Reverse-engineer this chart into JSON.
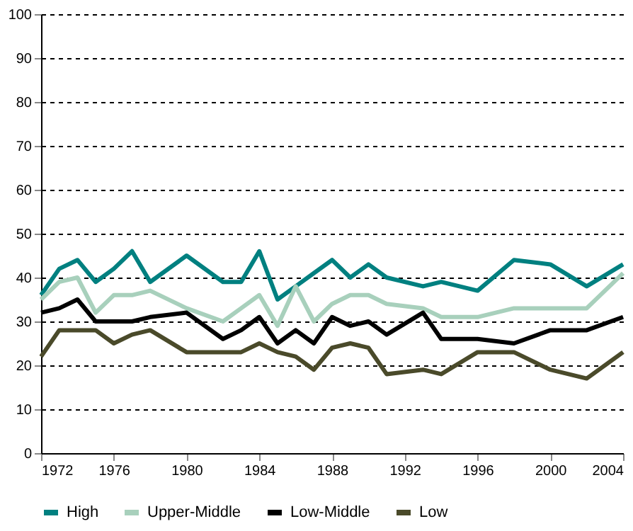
{
  "chart_data": {
    "type": "line",
    "x": [
      1972,
      1973,
      1974,
      1975,
      1976,
      1977,
      1978,
      1980,
      1982,
      1983,
      1984,
      1985,
      1986,
      1987,
      1988,
      1989,
      1990,
      1991,
      1993,
      1994,
      1996,
      1998,
      2000,
      2002,
      2004
    ],
    "series": [
      {
        "name": "High",
        "color": "#008080",
        "values": [
          36,
          42,
          44,
          39,
          42,
          46,
          39,
          45,
          39,
          39,
          46,
          35,
          38,
          41,
          44,
          40,
          43,
          40,
          38,
          39,
          37,
          44,
          43,
          38,
          43
        ]
      },
      {
        "name": "Upper-Middle",
        "color": "#a8d0bc",
        "values": [
          35,
          39,
          40,
          32,
          36,
          36,
          37,
          33,
          30,
          33,
          36,
          29,
          38,
          30,
          34,
          36,
          36,
          34,
          33,
          31,
          31,
          33,
          33,
          33,
          41
        ]
      },
      {
        "name": "Low-Middle",
        "color": "#000000",
        "values": [
          32,
          33,
          35,
          30,
          30,
          30,
          31,
          32,
          26,
          28,
          31,
          25,
          28,
          25,
          31,
          29,
          30,
          27,
          32,
          26,
          26,
          25,
          28,
          28,
          31
        ]
      },
      {
        "name": "Low",
        "color": "#4a4a2a",
        "values": [
          22,
          28,
          28,
          28,
          25,
          27,
          28,
          23,
          23,
          23,
          25,
          23,
          22,
          19,
          24,
          25,
          24,
          18,
          19,
          18,
          23,
          23,
          19,
          17,
          23
        ]
      }
    ],
    "xlim": [
      1972,
      2004
    ],
    "xticks": [
      1972,
      1976,
      1980,
      1984,
      1988,
      1992,
      1996,
      2000,
      2004
    ],
    "ylim": [
      0,
      100
    ],
    "yticks": [
      0,
      10,
      20,
      30,
      40,
      50,
      60,
      70,
      80,
      90,
      100
    ],
    "grid": "y",
    "legend": "bottom",
    "marker": "none",
    "line_style": "solid"
  }
}
